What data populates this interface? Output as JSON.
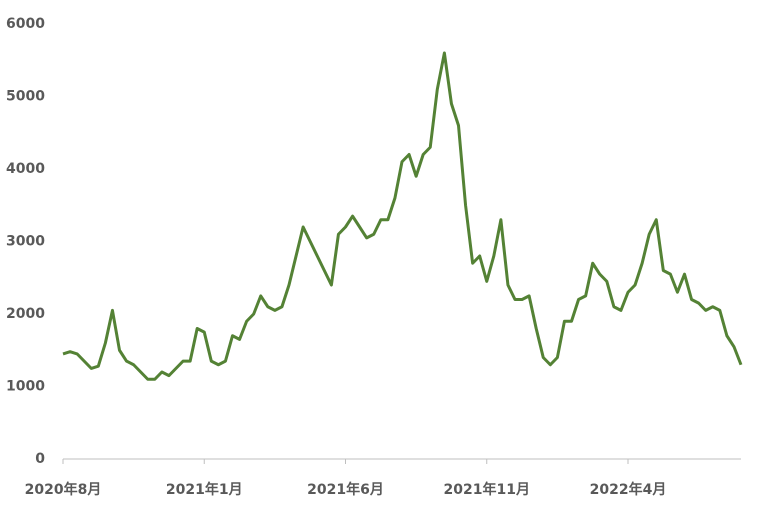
{
  "chart_data": {
    "type": "line",
    "categories": [
      "2020年8月",
      null,
      null,
      null,
      null,
      null,
      null,
      null,
      null,
      null,
      null,
      null,
      null,
      null,
      null,
      null,
      null,
      null,
      null,
      null,
      "2021年1月",
      null,
      null,
      null,
      null,
      null,
      null,
      null,
      null,
      null,
      null,
      null,
      null,
      null,
      null,
      null,
      null,
      null,
      null,
      null,
      "2021年6月",
      null,
      null,
      null,
      null,
      null,
      null,
      null,
      null,
      null,
      null,
      null,
      null,
      null,
      null,
      null,
      null,
      null,
      null,
      null,
      "2021年11月",
      null,
      null,
      null,
      null,
      null,
      null,
      null,
      null,
      null,
      null,
      null,
      null,
      null,
      null,
      null,
      null,
      null,
      null,
      null,
      "2022年4月",
      null,
      null,
      null,
      null,
      null,
      null,
      null,
      null,
      null,
      null,
      null,
      null,
      null,
      null,
      null,
      null
    ],
    "values": [
      1450,
      1480,
      1450,
      1350,
      1250,
      1280,
      1600,
      2050,
      1500,
      1350,
      1300,
      1200,
      1100,
      1100,
      1200,
      1150,
      1250,
      1350,
      1350,
      1800,
      1750,
      1350,
      1300,
      1350,
      1700,
      1650,
      1900,
      2000,
      2250,
      2100,
      2050,
      2100,
      2400,
      2800,
      3200,
      3000,
      2800,
      2600,
      2400,
      3100,
      3200,
      3350,
      3200,
      3050,
      3100,
      3300,
      3300,
      3600,
      4100,
      4200,
      3900,
      4200,
      4300,
      5100,
      5600,
      4900,
      4600,
      3500,
      2700,
      2800,
      2450,
      2800,
      3300,
      2400,
      2200,
      2200,
      2250,
      1800,
      1400,
      1300,
      1400,
      1900,
      1900,
      2200,
      2250,
      2700,
      2550,
      2450,
      2100,
      2050,
      2300,
      2400,
      2700,
      3100,
      3300,
      2600,
      2550,
      2300,
      2550,
      2200,
      2150,
      2050,
      2100,
      2050,
      1700,
      1550,
      1300
    ],
    "color": "#548235",
    "ylim": [
      0,
      6000
    ],
    "yticks": [
      0,
      1000,
      2000,
      3000,
      4000,
      5000,
      6000
    ],
    "grid": false
  }
}
